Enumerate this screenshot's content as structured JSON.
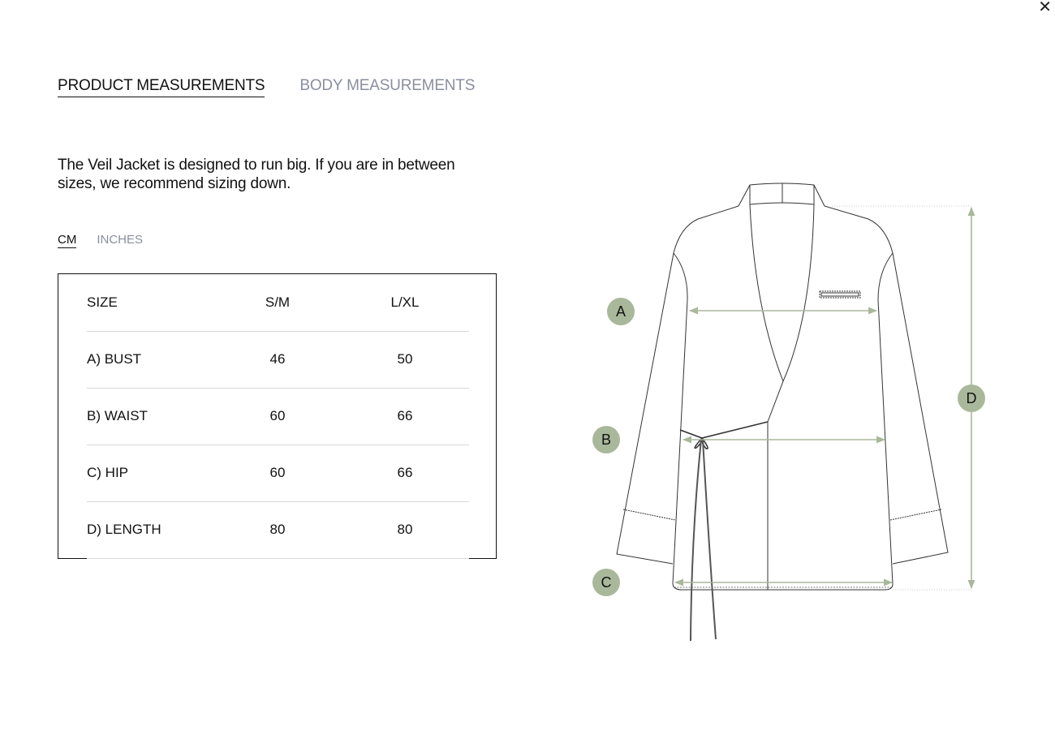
{
  "close_icon": "close-icon",
  "tabs": [
    {
      "label": "PRODUCT MEASUREMENTS",
      "active": true
    },
    {
      "label": "BODY MEASUREMENTS",
      "active": false
    }
  ],
  "description": "The Veil Jacket is designed to run big. If you are in between sizes, we recommend sizing down.",
  "units": [
    {
      "label": "CM",
      "active": true
    },
    {
      "label": "INCHES",
      "active": false
    }
  ],
  "table": {
    "headers": [
      "SIZE",
      "S/M",
      "L/XL"
    ],
    "rows": [
      [
        "A) BUST",
        "46",
        "50"
      ],
      [
        "B) WAIST",
        "60",
        "66"
      ],
      [
        "C) HIP",
        "60",
        "66"
      ],
      [
        "D) LENGTH",
        "80",
        "80"
      ]
    ]
  },
  "diagram": {
    "markers": [
      "A",
      "B",
      "C",
      "D"
    ],
    "marker_color": "#a9b89a",
    "arrow_color": "#a9b89a"
  }
}
